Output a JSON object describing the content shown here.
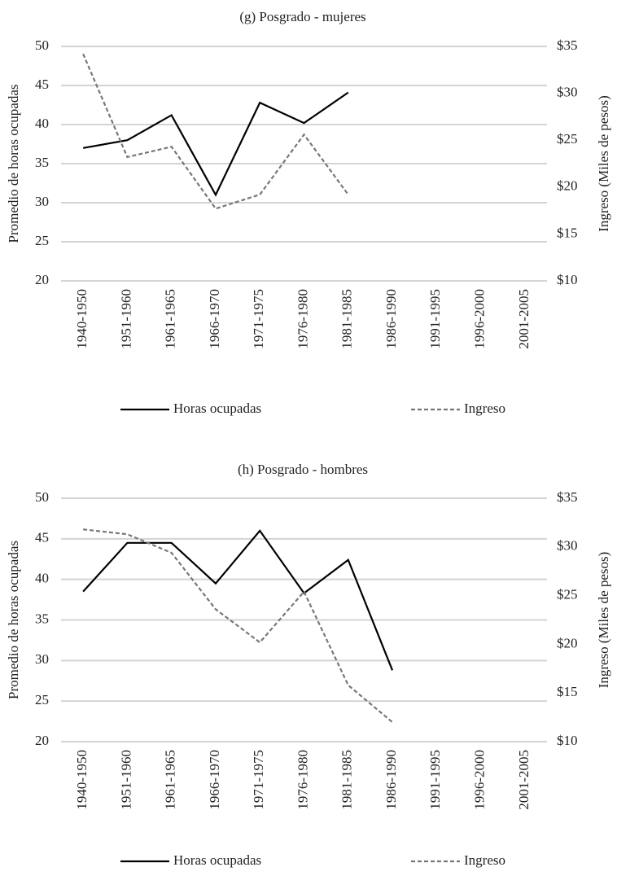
{
  "chart_data": [
    {
      "type": "line",
      "title": "(g) Posgrado - mujeres",
      "ylabel": "Promedio de horas ocupadas",
      "y2label": "Ingreso (Miles de pesos)",
      "categories": [
        "1940-1950",
        "1951-1960",
        "1961-1965",
        "1966-1970",
        "1971-1975",
        "1976-1980",
        "1981-1985",
        "1986-1990",
        "1991-1995",
        "1996-2000",
        "2001-2005"
      ],
      "ylim": [
        20,
        50
      ],
      "yticks": [
        20,
        25,
        30,
        35,
        40,
        45,
        50
      ],
      "y2lim": [
        10,
        35
      ],
      "y2ticks": [
        {
          "value": 10,
          "label": "$10"
        },
        {
          "value": 15,
          "label": "$15"
        },
        {
          "value": 20,
          "label": "$20"
        },
        {
          "value": 25,
          "label": "$25"
        },
        {
          "value": 30,
          "label": "$30"
        },
        {
          "value": 35,
          "label": "$35"
        }
      ],
      "grid": true,
      "series": [
        {
          "name": "Horas ocupadas",
          "color": "#000000",
          "linestyle": "solid",
          "values": [
            37,
            38,
            41.2,
            31,
            42.8,
            40.2,
            44.1,
            null,
            null,
            null,
            null
          ]
        },
        {
          "name": "Ingreso",
          "color": "#777777",
          "linestyle": "dashed",
          "axis": "y2",
          "values": [
            34.2,
            23.2,
            24.3,
            17.7,
            19.2,
            25.6,
            19.2,
            null,
            null,
            null,
            null
          ]
        }
      ]
    },
    {
      "type": "line",
      "title": "(h) Posgrado - hombres",
      "ylabel": "Promedio de horas ocupadas",
      "y2label": "Ingreso (Miles de pesos)",
      "categories": [
        "1940-1950",
        "1951-1960",
        "1961-1965",
        "1966-1970",
        "1971-1975",
        "1976-1980",
        "1981-1985",
        "1986-1990",
        "1991-1995",
        "1996-2000",
        "2001-2005"
      ],
      "ylim": [
        20,
        50
      ],
      "yticks": [
        20,
        25,
        30,
        35,
        40,
        45,
        50
      ],
      "y2lim": [
        10,
        35
      ],
      "y2ticks": [
        {
          "value": 10,
          "label": "$10"
        },
        {
          "value": 15,
          "label": "$15"
        },
        {
          "value": 20,
          "label": "$20"
        },
        {
          "value": 25,
          "label": "$25"
        },
        {
          "value": 30,
          "label": "$30"
        },
        {
          "value": 35,
          "label": "$35"
        }
      ],
      "grid": true,
      "series": [
        {
          "name": "Horas ocupadas",
          "color": "#000000",
          "linestyle": "solid",
          "values": [
            38.5,
            44.5,
            44.5,
            39.5,
            46,
            38.3,
            42.4,
            28.8,
            null,
            null,
            null
          ]
        },
        {
          "name": "Ingreso",
          "color": "#777777",
          "linestyle": "dashed",
          "axis": "y2",
          "values": [
            31.8,
            31.3,
            29.4,
            23.6,
            20.2,
            25.4,
            15.8,
            12,
            null,
            null,
            null
          ]
        }
      ]
    }
  ]
}
